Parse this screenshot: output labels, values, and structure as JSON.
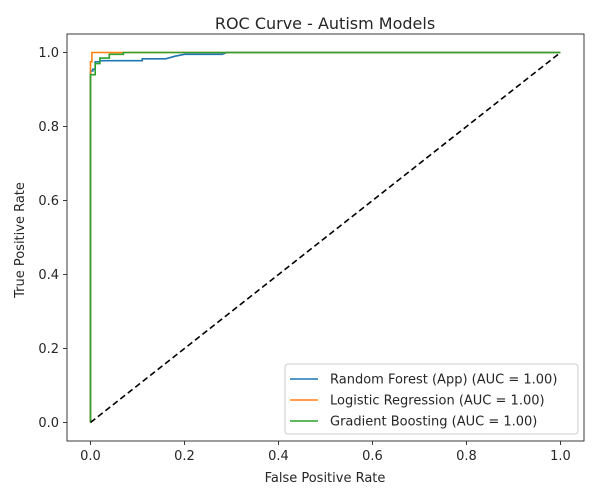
{
  "chart_data": {
    "type": "line",
    "title": "ROC Curve - Autism Models",
    "xlabel": "False Positive Rate",
    "ylabel": "True Positive Rate",
    "xlim": [
      -0.05,
      1.05
    ],
    "ylim": [
      -0.05,
      1.05
    ],
    "xticks": [
      0.0,
      0.2,
      0.4,
      0.6,
      0.8,
      1.0
    ],
    "yticks": [
      0.0,
      0.2,
      0.4,
      0.6,
      0.8,
      1.0
    ],
    "xtick_labels": [
      "0.0",
      "0.2",
      "0.4",
      "0.6",
      "0.8",
      "1.0"
    ],
    "ytick_labels": [
      "0.0",
      "0.2",
      "0.4",
      "0.6",
      "0.8",
      "1.0"
    ],
    "grid": false,
    "legend_position": "lower-right",
    "series": [
      {
        "name": "Random Forest (App) (AUC = 1.00)",
        "color": "#1f77b4",
        "x": [
          0,
          0,
          0.005,
          0.005,
          0.01,
          0.01,
          0.02,
          0.02,
          0.11,
          0.11,
          0.16,
          0.18,
          0.2,
          0.28,
          0.29,
          0.3,
          1.0
        ],
        "y": [
          0,
          0.95,
          0.95,
          0.955,
          0.955,
          0.975,
          0.975,
          0.978,
          0.978,
          0.983,
          0.983,
          0.99,
          0.995,
          0.995,
          1.0,
          1.0,
          1.0
        ]
      },
      {
        "name": "Logistic Regression (AUC = 1.00)",
        "color": "#ff7f0e",
        "x": [
          0,
          0,
          0.003,
          0.003,
          0.07,
          1.0
        ],
        "y": [
          0,
          0.975,
          0.975,
          1.0,
          1.0,
          1.0
        ]
      },
      {
        "name": "Gradient Boosting (AUC = 1.00)",
        "color": "#2ca02c",
        "x": [
          0,
          0,
          0.01,
          0.01,
          0.02,
          0.02,
          0.04,
          0.04,
          0.07,
          0.07,
          1.0
        ],
        "y": [
          0,
          0.94,
          0.94,
          0.97,
          0.97,
          0.985,
          0.985,
          0.995,
          0.995,
          1.0,
          1.0
        ]
      }
    ],
    "reference_line": {
      "style": "dashed",
      "color": "#000000",
      "x": [
        0,
        1
      ],
      "y": [
        0,
        1
      ]
    }
  }
}
